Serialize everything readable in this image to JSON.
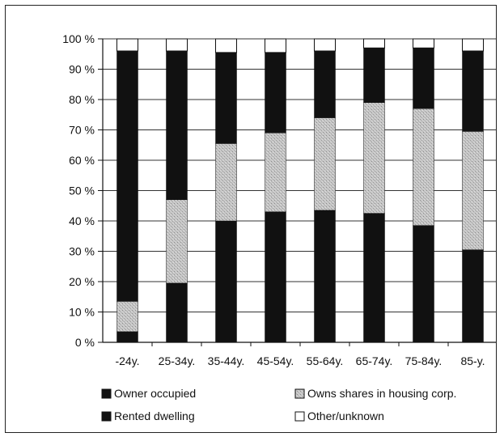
{
  "chart_data": {
    "type": "bar",
    "stacked": true,
    "categories": [
      "-24y.",
      "25-34y.",
      "35-44y.",
      "45-54y.",
      "55-64y.",
      "65-74y.",
      "75-84y.",
      "85-y."
    ],
    "series": [
      {
        "name": "Owner occupied",
        "values": [
          3.5,
          19.5,
          40,
          43,
          43.5,
          42.5,
          38.5,
          30.5
        ],
        "color": "#111111"
      },
      {
        "name": "Owns shares in housing corp.",
        "values": [
          10,
          27.5,
          25.5,
          26,
          30.5,
          36.5,
          38.5,
          39
        ],
        "color": "#bdbdbd"
      },
      {
        "name": "Rented dwelling",
        "values": [
          82.5,
          49,
          30,
          26.5,
          22,
          18,
          20,
          26.5
        ],
        "color": "#111111"
      },
      {
        "name": "Other/unknown",
        "values": [
          4,
          4,
          4.5,
          4.5,
          4,
          3,
          3,
          4
        ],
        "color": "#ffffff"
      }
    ],
    "y_ticks": [
      "0 %",
      "10 %",
      "20 %",
      "30 %",
      "40 %",
      "50 %",
      "60 %",
      "70 %",
      "80 %",
      "90 %",
      "100 %"
    ],
    "ylim": [
      0,
      100
    ],
    "grid": true,
    "legend_position": "bottom",
    "legend_order": [
      "Owner occupied",
      "Owns shares in housing corp.",
      "Rented dwelling",
      "Other/unknown"
    ]
  }
}
